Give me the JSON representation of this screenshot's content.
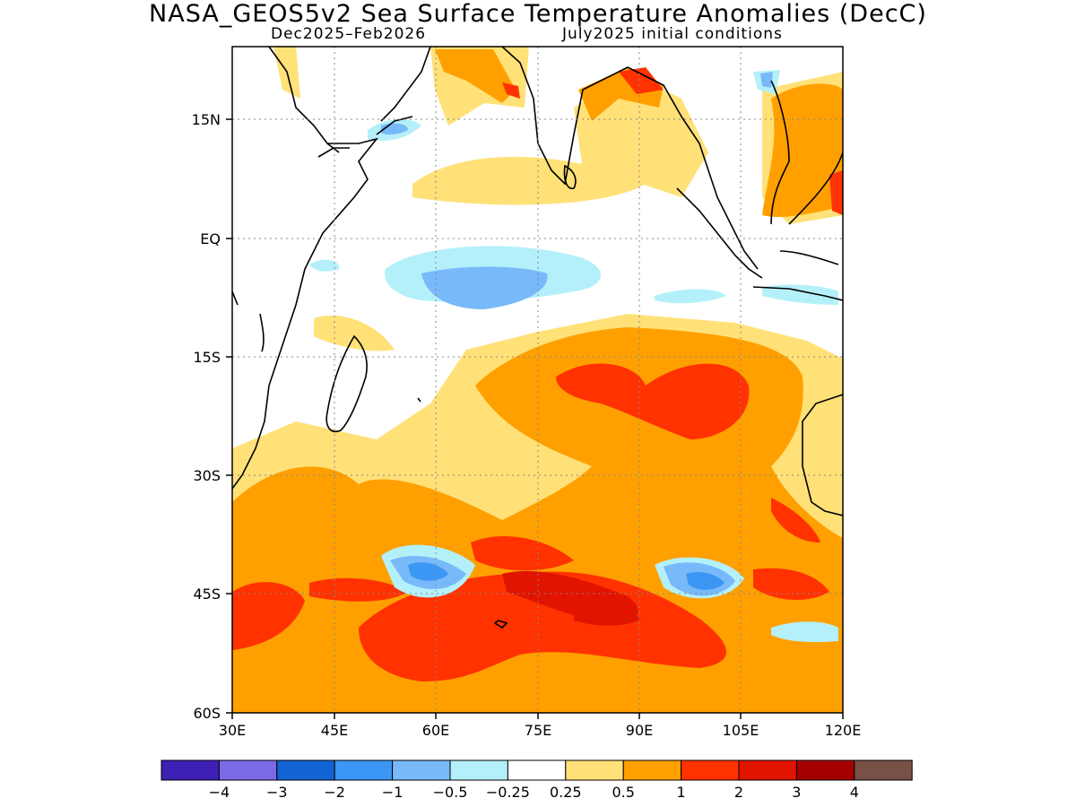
{
  "title": "NASA_GEOS5v2 Sea Surface Temperature Anomalies (DecC)",
  "subtitle_left": "Dec2025–Feb2026",
  "subtitle_right": "July2025 initial conditions",
  "lat_ticks": [
    "15N",
    "EQ",
    "15S",
    "30S",
    "45S",
    "60S"
  ],
  "lon_ticks": [
    "30E",
    "45E",
    "60E",
    "75E",
    "90E",
    "105E",
    "120E"
  ],
  "colorbar": {
    "colors": [
      "#3d1fb4",
      "#7b6ae6",
      "#1463d2",
      "#3c96f4",
      "#78b9fa",
      "#b4f0fa",
      "#ffffff",
      "#ffe178",
      "#ffa000",
      "#ff3200",
      "#e11400",
      "#a50000",
      "#785046"
    ],
    "labels": [
      "−4",
      "−3",
      "−2",
      "−1",
      "−0.5",
      "−0.25",
      "0.25",
      "0.5",
      "1",
      "2",
      "3",
      "4"
    ]
  }
}
